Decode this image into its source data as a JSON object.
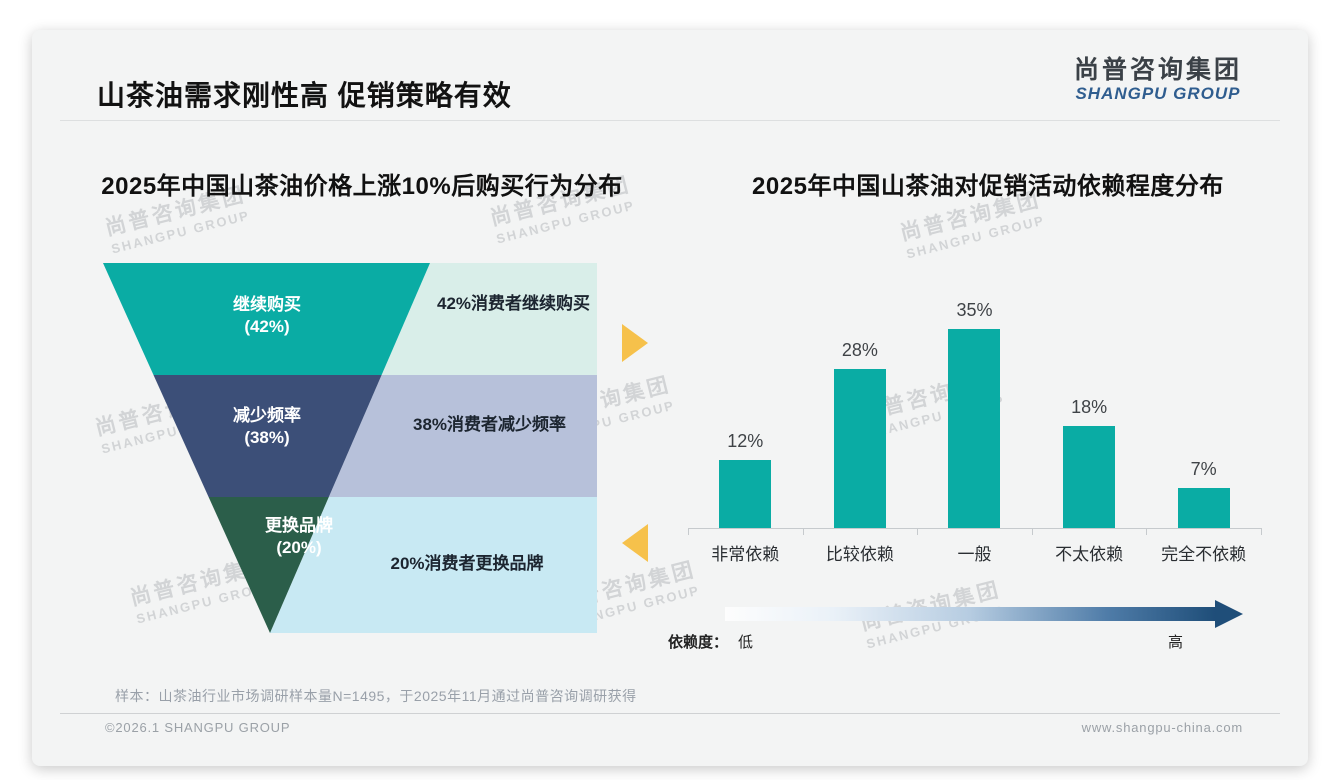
{
  "page": {
    "title": "山茶油需求刚性高 促销策略有效",
    "logo": {
      "cn": "尚普咨询集团",
      "en": "SHANGPU GROUP"
    },
    "watermark": {
      "cn": "尚普咨询集团",
      "en": "SHANGPU GROUP"
    },
    "sample_note": "样本：山茶油行业市场调研样本量N=1495，于2025年11月通过尚普咨询调研获得",
    "footer": {
      "copyright": "©2026.1 SHANGPU GROUP",
      "website": "www.shangpu-china.com"
    }
  },
  "colors": {
    "card_bg": "#f3f4f4",
    "funnel_teal": "#0aaca4",
    "funnel_navy": "#3c4f78",
    "funnel_green": "#2b5e4a",
    "panel_mint": "#d9eee9",
    "panel_periwinkle": "#b7c1da",
    "panel_cyan": "#c8e9f3",
    "bar_teal": "#0aaca4",
    "accent_yellow": "#f6c14b",
    "gradient_dark": "#1f4e79"
  },
  "chart_data": [
    {
      "type": "funnel",
      "title": "2025年中国山茶油价格上涨10%后购买行为分布",
      "stages": [
        {
          "label": "继续购买",
          "pct": "(42%)",
          "value": 42,
          "note": "42%消费者继续购买",
          "color": "#0aaca4",
          "note_bg": "#d9eee9"
        },
        {
          "label": "减少频率",
          "pct": "(38%)",
          "value": 38,
          "note": "38%消费者减少频率",
          "color": "#3c4f78",
          "note_bg": "#b7c1da"
        },
        {
          "label": "更换品牌",
          "pct": "(20%)",
          "value": 20,
          "note": "20%消费者更换品牌",
          "color": "#2b5e4a",
          "note_bg": "#c8e9f3"
        }
      ]
    },
    {
      "type": "bar",
      "title": "2025年中国山茶油对促销活动依赖程度分布",
      "categories": [
        "非常依赖",
        "比较依赖",
        "一般",
        "不太依赖",
        "完全不依赖"
      ],
      "values": [
        12,
        28,
        35,
        18,
        7
      ],
      "labels": [
        "12%",
        "28%",
        "35%",
        "18%",
        "7%"
      ],
      "ylim": [
        0,
        40
      ],
      "grid": false,
      "bar_color": "#0aaca4",
      "legend": {
        "label": "依赖度：",
        "low": "低",
        "high": "高"
      }
    }
  ]
}
